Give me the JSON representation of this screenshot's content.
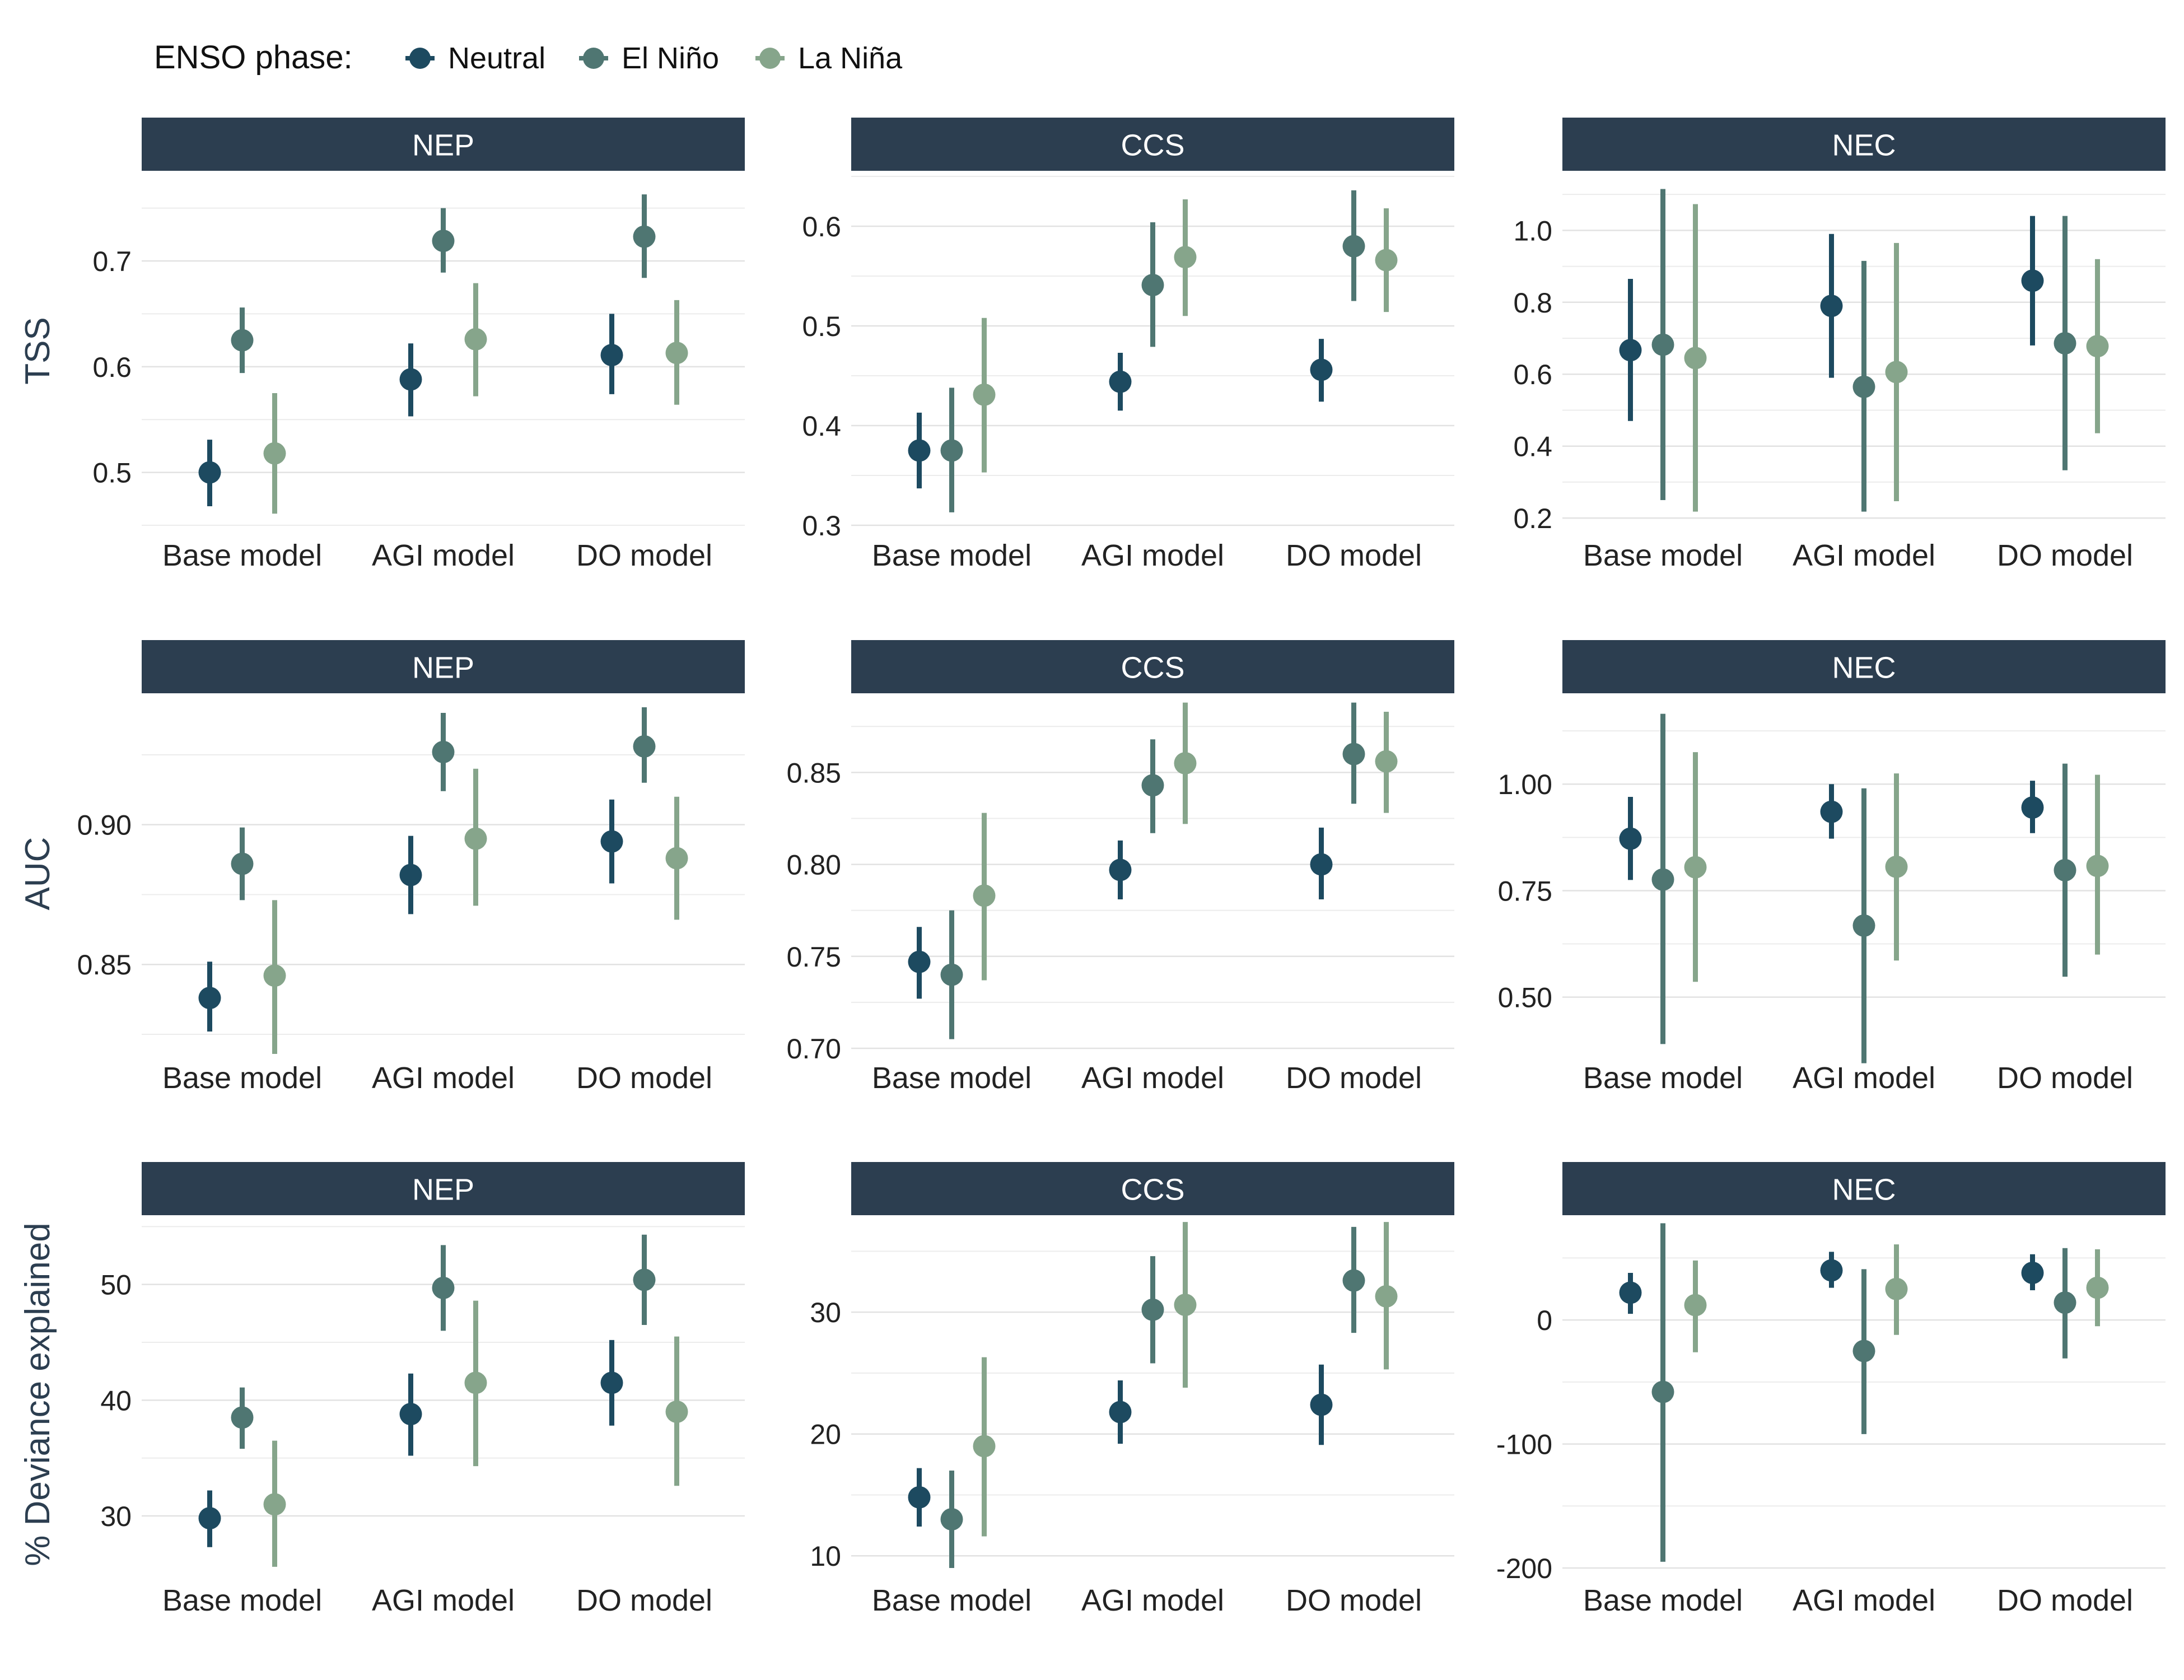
{
  "legend": {
    "title": "ENSO phase:",
    "items": [
      {
        "label": "Neutral",
        "color": "#1d4a60"
      },
      {
        "label": "El Niño",
        "color": "#4f7672"
      },
      {
        "label": "La Niña",
        "color": "#86a58b"
      }
    ]
  },
  "colors": {
    "strip": "#2c3e50",
    "grid": "#e2e2e2"
  },
  "chart_data": [
    {
      "type": "pointrange",
      "row_label": "TSS",
      "panel": "NEP",
      "categories": [
        "Base model",
        "AGI model",
        "DO model"
      ],
      "ylim": [
        0.45,
        0.78
      ],
      "yticks": [
        0.5,
        0.6,
        0.7
      ],
      "series": [
        {
          "name": "Neutral",
          "values": [
            0.5,
            0.588,
            0.611
          ],
          "lower": [
            0.468,
            0.553,
            0.574
          ],
          "upper": [
            0.531,
            0.622,
            0.65
          ]
        },
        {
          "name": "El Niño",
          "values": [
            0.625,
            0.719,
            0.723
          ],
          "lower": [
            0.594,
            0.689,
            0.684
          ],
          "upper": [
            0.656,
            0.75,
            0.763
          ]
        },
        {
          "name": "La Niña",
          "values": [
            0.518,
            0.626,
            0.613
          ],
          "lower": [
            0.461,
            0.572,
            0.564
          ],
          "upper": [
            0.575,
            0.679,
            0.663
          ]
        }
      ]
    },
    {
      "type": "pointrange",
      "row_label": "",
      "panel": "CCS",
      "categories": [
        "Base model",
        "AGI model",
        "DO model"
      ],
      "ylim": [
        0.3,
        0.65
      ],
      "yticks": [
        0.3,
        0.4,
        0.5,
        0.6
      ],
      "series": [
        {
          "name": "Neutral",
          "values": [
            0.375,
            0.444,
            0.456
          ],
          "lower": [
            0.337,
            0.415,
            0.424
          ],
          "upper": [
            0.413,
            0.473,
            0.487
          ]
        },
        {
          "name": "El Niño",
          "values": [
            0.375,
            0.541,
            0.58
          ],
          "lower": [
            0.313,
            0.479,
            0.525
          ],
          "upper": [
            0.438,
            0.604,
            0.636
          ]
        },
        {
          "name": "La Niña",
          "values": [
            0.431,
            0.569,
            0.566
          ],
          "lower": [
            0.353,
            0.51,
            0.514
          ],
          "upper": [
            0.508,
            0.627,
            0.618
          ]
        }
      ]
    },
    {
      "type": "pointrange",
      "row_label": "",
      "panel": "NEC",
      "categories": [
        "Base model",
        "AGI model",
        "DO model"
      ],
      "ylim": [
        0.18,
        1.15
      ],
      "yticks": [
        0.2,
        0.4,
        0.6,
        0.8,
        1.0
      ],
      "series": [
        {
          "name": "Neutral",
          "values": [
            0.667,
            0.79,
            0.86
          ],
          "lower": [
            0.47,
            0.59,
            0.68
          ],
          "upper": [
            0.865,
            0.99,
            1.04
          ]
        },
        {
          "name": "El Niño",
          "values": [
            0.682,
            0.565,
            0.686
          ],
          "lower": [
            0.25,
            0.218,
            0.333
          ],
          "upper": [
            1.115,
            0.915,
            1.04
          ]
        },
        {
          "name": "La Niña",
          "values": [
            0.645,
            0.606,
            0.678
          ],
          "lower": [
            0.218,
            0.247,
            0.436
          ],
          "upper": [
            1.073,
            0.965,
            0.92
          ]
        }
      ]
    },
    {
      "type": "pointrange",
      "row_label": "AUC",
      "panel": "NEP",
      "categories": [
        "Base model",
        "AGI model",
        "DO model"
      ],
      "ylim": [
        0.82,
        0.945
      ],
      "yticks": [
        0.85,
        0.9
      ],
      "series": [
        {
          "name": "Neutral",
          "values": [
            0.838,
            0.882,
            0.894
          ],
          "lower": [
            0.826,
            0.868,
            0.879
          ],
          "upper": [
            0.851,
            0.896,
            0.909
          ]
        },
        {
          "name": "El Niño",
          "values": [
            0.886,
            0.926,
            0.928
          ],
          "lower": [
            0.873,
            0.912,
            0.915
          ],
          "upper": [
            0.899,
            0.94,
            0.942
          ]
        },
        {
          "name": "La Niña",
          "values": [
            0.846,
            0.895,
            0.888
          ],
          "lower": [
            0.818,
            0.871,
            0.866
          ],
          "upper": [
            0.873,
            0.92,
            0.91
          ]
        }
      ]
    },
    {
      "type": "pointrange",
      "row_label": "",
      "panel": "CCS",
      "categories": [
        "Base model",
        "AGI model",
        "DO model"
      ],
      "ylim": [
        0.7,
        0.89
      ],
      "yticks": [
        0.7,
        0.75,
        0.8,
        0.85
      ],
      "series": [
        {
          "name": "Neutral",
          "values": [
            0.747,
            0.797,
            0.8
          ],
          "lower": [
            0.727,
            0.781,
            0.781
          ],
          "upper": [
            0.766,
            0.813,
            0.82
          ]
        },
        {
          "name": "El Niño",
          "values": [
            0.74,
            0.843,
            0.86
          ],
          "lower": [
            0.705,
            0.817,
            0.833
          ],
          "upper": [
            0.775,
            0.868,
            0.888
          ]
        },
        {
          "name": "La Niña",
          "values": [
            0.783,
            0.855,
            0.856
          ],
          "lower": [
            0.737,
            0.822,
            0.828
          ],
          "upper": [
            0.828,
            0.888,
            0.883
          ]
        }
      ]
    },
    {
      "type": "pointrange",
      "row_label": "",
      "panel": "NEC",
      "categories": [
        "Base model",
        "AGI model",
        "DO model"
      ],
      "ylim": [
        0.38,
        1.2
      ],
      "yticks": [
        0.5,
        0.75,
        1.0
      ],
      "series": [
        {
          "name": "Neutral",
          "values": [
            0.872,
            0.935,
            0.945
          ],
          "lower": [
            0.775,
            0.872,
            0.885
          ],
          "upper": [
            0.97,
            1.0,
            1.008
          ]
        },
        {
          "name": "El Niño",
          "values": [
            0.776,
            0.668,
            0.798
          ],
          "lower": [
            0.39,
            0.345,
            0.548
          ],
          "upper": [
            1.165,
            0.99,
            1.048
          ]
        },
        {
          "name": "La Niña",
          "values": [
            0.805,
            0.806,
            0.808
          ],
          "lower": [
            0.536,
            0.586,
            0.6
          ],
          "upper": [
            1.075,
            1.025,
            1.022
          ]
        }
      ]
    },
    {
      "type": "pointrange",
      "row_label": "% Deviance explained",
      "panel": "NEP",
      "categories": [
        "Base model",
        "AGI model",
        "DO model"
      ],
      "ylim": [
        25.5,
        55.5
      ],
      "yticks": [
        30,
        40,
        50
      ],
      "series": [
        {
          "name": "Neutral",
          "values": [
            29.8,
            38.8,
            41.5
          ],
          "lower": [
            27.3,
            35.2,
            37.8
          ],
          "upper": [
            32.2,
            42.3,
            45.2
          ]
        },
        {
          "name": "El Niño",
          "values": [
            38.5,
            49.7,
            50.4
          ],
          "lower": [
            35.8,
            46.0,
            46.5
          ],
          "upper": [
            41.1,
            53.4,
            54.3
          ]
        },
        {
          "name": "La Niña",
          "values": [
            31.0,
            41.5,
            39.0
          ],
          "lower": [
            25.6,
            34.3,
            32.6
          ],
          "upper": [
            36.5,
            48.6,
            45.5
          ]
        }
      ]
    },
    {
      "type": "pointrange",
      "row_label": "",
      "panel": "CCS",
      "categories": [
        "Base model",
        "AGI model",
        "DO model"
      ],
      "ylim": [
        9,
        37.5
      ],
      "yticks": [
        10,
        20,
        30
      ],
      "series": [
        {
          "name": "Neutral",
          "values": [
            14.8,
            21.8,
            22.4
          ],
          "lower": [
            12.4,
            19.2,
            19.1
          ],
          "upper": [
            17.2,
            24.4,
            25.7
          ]
        },
        {
          "name": "El Niño",
          "values": [
            13.0,
            30.2,
            32.6
          ],
          "lower": [
            9.0,
            25.8,
            28.3
          ],
          "upper": [
            17.0,
            34.6,
            37.0
          ]
        },
        {
          "name": "La Niña",
          "values": [
            19.0,
            30.6,
            31.3
          ],
          "lower": [
            11.6,
            23.8,
            25.3
          ],
          "upper": [
            26.3,
            37.4,
            37.4
          ]
        }
      ]
    },
    {
      "type": "pointrange",
      "row_label": "",
      "panel": "NEC",
      "categories": [
        "Base model",
        "AGI model",
        "DO model"
      ],
      "ylim": [
        -200,
        80
      ],
      "yticks": [
        -200,
        -100,
        0
      ],
      "series": [
        {
          "name": "Neutral",
          "values": [
            22,
            40,
            38
          ],
          "lower": [
            5,
            26,
            24
          ],
          "upper": [
            38,
            55,
            53
          ]
        },
        {
          "name": "El Niño",
          "values": [
            -58,
            -25,
            14
          ],
          "lower": [
            -195,
            -92,
            -31
          ],
          "upper": [
            78,
            41,
            58
          ]
        },
        {
          "name": "La Niña",
          "values": [
            12,
            25,
            26
          ],
          "lower": [
            -26,
            -12,
            -5
          ],
          "upper": [
            48,
            61,
            57
          ]
        }
      ]
    }
  ]
}
